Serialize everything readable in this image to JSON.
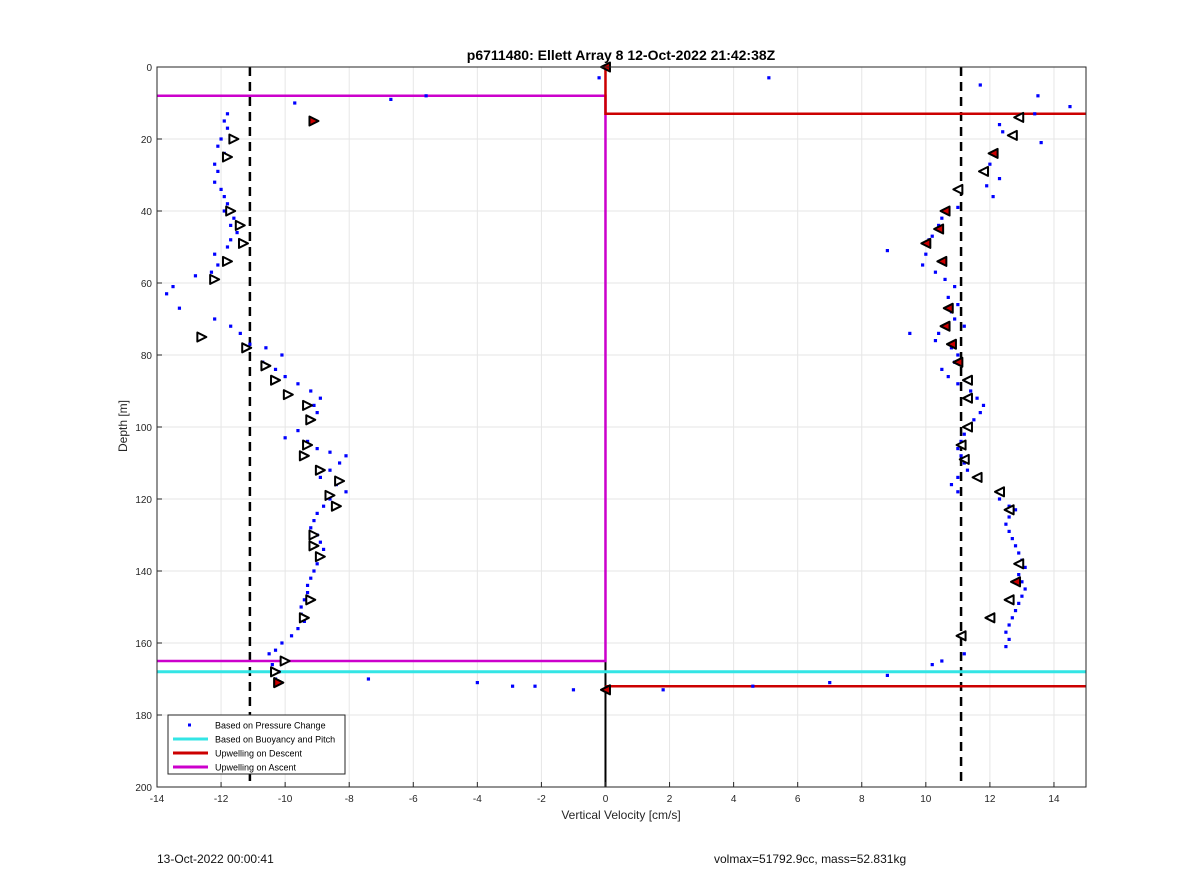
{
  "chart_data": {
    "type": "scatter",
    "title": "p6711480: Ellett Array 8 12-Oct-2022 21:42:38Z",
    "xlabel": "Vertical Velocity [cm/s]",
    "ylabel": "Depth [m]",
    "xlim": [
      -14,
      15
    ],
    "ylim": [
      0,
      200
    ],
    "y_reversed": true,
    "grid": true,
    "legend_location": "bottom-left",
    "xticks": [
      -14,
      -12,
      -10,
      -8,
      -6,
      -4,
      -2,
      0,
      2,
      4,
      6,
      8,
      10,
      12,
      14
    ],
    "xtick_labels": [
      "-14",
      "-12",
      "-10",
      "-8",
      "-6",
      "-4",
      "-2",
      "0",
      "2",
      "4",
      "6",
      "8",
      "10",
      "12",
      "14"
    ],
    "yticks": [
      0,
      20,
      40,
      60,
      80,
      100,
      120,
      140,
      160,
      180,
      200
    ],
    "ytick_labels": [
      "0",
      "20",
      "40",
      "60",
      "80",
      "100",
      "120",
      "140",
      "160",
      "180",
      "200"
    ],
    "legend": [
      {
        "label": "Based on Pressure Change",
        "style": "dot",
        "color": "#0000ff"
      },
      {
        "label": "Based on Buoyancy and Pitch",
        "style": "line",
        "color": "#33e5e5"
      },
      {
        "label": "Upwelling on Descent",
        "style": "line",
        "color": "#cc0000"
      },
      {
        "label": "Upwelling on Ascent",
        "style": "line",
        "color": "#cc00cc"
      }
    ],
    "reference_lines": {
      "zero_x": 0,
      "dashed_x": [
        -11.1,
        11.1
      ]
    },
    "pressure_points": [
      [
        -9.7,
        10
      ],
      [
        -6.7,
        9
      ],
      [
        -5.6,
        8
      ],
      [
        -11.8,
        13
      ],
      [
        -11.9,
        15
      ],
      [
        -11.8,
        17
      ],
      [
        -12.0,
        20
      ],
      [
        -12.1,
        22
      ],
      [
        -11.9,
        24
      ],
      [
        -12.2,
        27
      ],
      [
        -12.1,
        29
      ],
      [
        -12.2,
        32
      ],
      [
        -12.0,
        34
      ],
      [
        -11.9,
        36
      ],
      [
        -11.8,
        38
      ],
      [
        -11.9,
        40
      ],
      [
        -11.6,
        42
      ],
      [
        -11.7,
        44
      ],
      [
        -11.5,
        46
      ],
      [
        -11.7,
        48
      ],
      [
        -11.8,
        50
      ],
      [
        -12.2,
        52
      ],
      [
        -12.1,
        55
      ],
      [
        -12.3,
        57
      ],
      [
        -12.8,
        58
      ],
      [
        -13.5,
        61
      ],
      [
        -13.7,
        63
      ],
      [
        -13.3,
        67
      ],
      [
        -12.2,
        70
      ],
      [
        -11.7,
        72
      ],
      [
        -11.4,
        74
      ],
      [
        -11.1,
        77
      ],
      [
        -10.6,
        78
      ],
      [
        -10.1,
        80
      ],
      [
        -10.7,
        82
      ],
      [
        -10.3,
        84
      ],
      [
        -10.0,
        86
      ],
      [
        -9.6,
        88
      ],
      [
        -9.2,
        90
      ],
      [
        -8.9,
        92
      ],
      [
        -9.1,
        94
      ],
      [
        -9.0,
        96
      ],
      [
        -9.3,
        98
      ],
      [
        -9.6,
        101
      ],
      [
        -10.0,
        103
      ],
      [
        -9.3,
        104
      ],
      [
        -9.0,
        106
      ],
      [
        -8.6,
        107
      ],
      [
        -8.1,
        108
      ],
      [
        -8.3,
        110
      ],
      [
        -8.6,
        112
      ],
      [
        -8.9,
        114
      ],
      [
        -8.4,
        116
      ],
      [
        -8.1,
        118
      ],
      [
        -8.6,
        120
      ],
      [
        -8.8,
        122
      ],
      [
        -9.0,
        124
      ],
      [
        -9.1,
        126
      ],
      [
        -9.2,
        128
      ],
      [
        -9.0,
        130
      ],
      [
        -8.9,
        132
      ],
      [
        -8.8,
        134
      ],
      [
        -8.9,
        136
      ],
      [
        -9.0,
        138
      ],
      [
        -9.1,
        140
      ],
      [
        -9.2,
        142
      ],
      [
        -9.3,
        144
      ],
      [
        -9.3,
        146
      ],
      [
        -9.4,
        148
      ],
      [
        -9.5,
        150
      ],
      [
        -9.5,
        152
      ],
      [
        -9.4,
        154
      ],
      [
        -9.6,
        156
      ],
      [
        -9.8,
        158
      ],
      [
        -10.1,
        160
      ],
      [
        -10.3,
        162
      ],
      [
        -10.5,
        163
      ],
      [
        -10.4,
        166
      ],
      [
        -10.2,
        168
      ],
      [
        -10.3,
        170
      ],
      [
        -7.4,
        170
      ],
      [
        -4.0,
        171
      ],
      [
        -2.9,
        172
      ],
      [
        -2.2,
        172
      ],
      [
        -1.0,
        173
      ],
      [
        1.8,
        173
      ],
      [
        4.6,
        172
      ],
      [
        7.0,
        171
      ],
      [
        8.8,
        169
      ],
      [
        10.2,
        166
      ],
      [
        10.5,
        165
      ],
      [
        11.2,
        163
      ],
      [
        5.1,
        3
      ],
      [
        -0.2,
        3
      ],
      [
        11.7,
        5
      ],
      [
        13.5,
        8
      ],
      [
        14.5,
        11
      ],
      [
        13.4,
        13
      ],
      [
        12.3,
        16
      ],
      [
        12.4,
        18
      ],
      [
        13.6,
        21
      ],
      [
        12.2,
        24
      ],
      [
        12.0,
        27
      ],
      [
        12.3,
        31
      ],
      [
        11.9,
        33
      ],
      [
        12.1,
        36
      ],
      [
        11.0,
        39
      ],
      [
        10.5,
        42
      ],
      [
        10.4,
        44
      ],
      [
        10.2,
        47
      ],
      [
        10.1,
        48
      ],
      [
        10.0,
        52
      ],
      [
        9.9,
        55
      ],
      [
        10.3,
        57
      ],
      [
        10.6,
        59
      ],
      [
        10.9,
        61
      ],
      [
        10.7,
        64
      ],
      [
        11.0,
        66
      ],
      [
        10.8,
        68
      ],
      [
        10.9,
        70
      ],
      [
        11.2,
        72
      ],
      [
        10.4,
        74
      ],
      [
        10.3,
        76
      ],
      [
        10.8,
        78
      ],
      [
        11.0,
        80
      ],
      [
        10.9,
        82
      ],
      [
        10.5,
        84
      ],
      [
        10.7,
        86
      ],
      [
        11.0,
        88
      ],
      [
        11.4,
        90
      ],
      [
        11.6,
        92
      ],
      [
        11.8,
        94
      ],
      [
        11.7,
        96
      ],
      [
        11.5,
        98
      ],
      [
        11.4,
        100
      ],
      [
        11.2,
        102
      ],
      [
        11.1,
        104
      ],
      [
        11.0,
        106
      ],
      [
        11.1,
        108
      ],
      [
        11.2,
        110
      ],
      [
        11.3,
        112
      ],
      [
        11.0,
        114
      ],
      [
        10.8,
        116
      ],
      [
        11.0,
        118
      ],
      [
        12.3,
        120
      ],
      [
        12.6,
        122
      ],
      [
        12.8,
        123
      ],
      [
        12.6,
        125
      ],
      [
        12.5,
        127
      ],
      [
        12.6,
        129
      ],
      [
        12.7,
        131
      ],
      [
        12.8,
        133
      ],
      [
        12.9,
        135
      ],
      [
        13.0,
        137
      ],
      [
        13.1,
        139
      ],
      [
        12.9,
        141
      ],
      [
        13.0,
        143
      ],
      [
        13.1,
        145
      ],
      [
        13.0,
        147
      ],
      [
        12.9,
        149
      ],
      [
        12.8,
        151
      ],
      [
        12.7,
        153
      ],
      [
        12.6,
        155
      ],
      [
        12.5,
        157
      ],
      [
        12.6,
        159
      ],
      [
        12.5,
        161
      ],
      [
        8.8,
        51
      ],
      [
        9.5,
        74
      ]
    ],
    "left_facing_triangles": [
      [
        -11.6,
        20
      ],
      [
        -11.8,
        25
      ],
      [
        -11.7,
        40
      ],
      [
        -11.4,
        44
      ],
      [
        -11.3,
        49
      ],
      [
        -11.8,
        54
      ],
      [
        -12.2,
        59
      ],
      [
        -12.6,
        75
      ],
      [
        -11.2,
        78
      ],
      [
        -10.6,
        83
      ],
      [
        -10.3,
        87
      ],
      [
        -9.9,
        91
      ],
      [
        -9.3,
        94
      ],
      [
        -9.2,
        98
      ],
      [
        -9.3,
        105
      ],
      [
        -9.4,
        108
      ],
      [
        -8.9,
        112
      ],
      [
        -8.3,
        115
      ],
      [
        -8.6,
        119
      ],
      [
        -8.4,
        122
      ],
      [
        -9.1,
        130
      ],
      [
        -9.1,
        133
      ],
      [
        -8.9,
        136
      ],
      [
        -9.2,
        148
      ],
      [
        -9.4,
        153
      ],
      [
        -10.0,
        165
      ],
      [
        -10.3,
        168
      ],
      [
        -10.2,
        171
      ],
      [
        12.9,
        14
      ],
      [
        12.7,
        19
      ],
      [
        11.8,
        29
      ],
      [
        11.0,
        34
      ],
      [
        11.3,
        87
      ],
      [
        11.3,
        92
      ],
      [
        11.3,
        100
      ],
      [
        11.1,
        105
      ],
      [
        11.2,
        109
      ],
      [
        11.6,
        114
      ],
      [
        12.3,
        118
      ],
      [
        12.6,
        123
      ],
      [
        12.9,
        138
      ],
      [
        12.6,
        148
      ],
      [
        12.0,
        153
      ],
      [
        11.1,
        158
      ]
    ],
    "red_triangles": [
      [
        0.0,
        0
      ],
      [
        -9.1,
        15
      ],
      [
        12.1,
        24
      ],
      [
        10.6,
        40
      ],
      [
        10.4,
        45
      ],
      [
        10.0,
        49
      ],
      [
        10.5,
        54
      ],
      [
        10.7,
        67
      ],
      [
        10.6,
        72
      ],
      [
        10.8,
        77
      ],
      [
        11.0,
        82
      ],
      [
        12.8,
        143
      ],
      [
        0.0,
        173
      ],
      [
        -10.2,
        171
      ]
    ],
    "magenta_path": [
      [
        -14,
        8
      ],
      [
        0,
        8
      ],
      [
        0,
        165
      ],
      [
        -14,
        165
      ]
    ],
    "red_path": [
      [
        0,
        0
      ],
      [
        0,
        13
      ],
      [
        15,
        13
      ]
    ],
    "cyan_path": [
      [
        -14,
        168
      ],
      [
        15,
        168
      ]
    ],
    "red_path_bottom": [
      [
        0,
        172
      ],
      [
        15,
        172
      ]
    ]
  },
  "footer": {
    "left": "13-Oct-2022 00:00:41",
    "right": "volmax=51792.9cc, mass=52.831kg"
  },
  "colors": {
    "points": "#0000ff",
    "buoyancy": "#33e5e5",
    "descent": "#cc0000",
    "ascent": "#cc00cc",
    "grid": "#e6e6e6",
    "axis": "#262626"
  }
}
